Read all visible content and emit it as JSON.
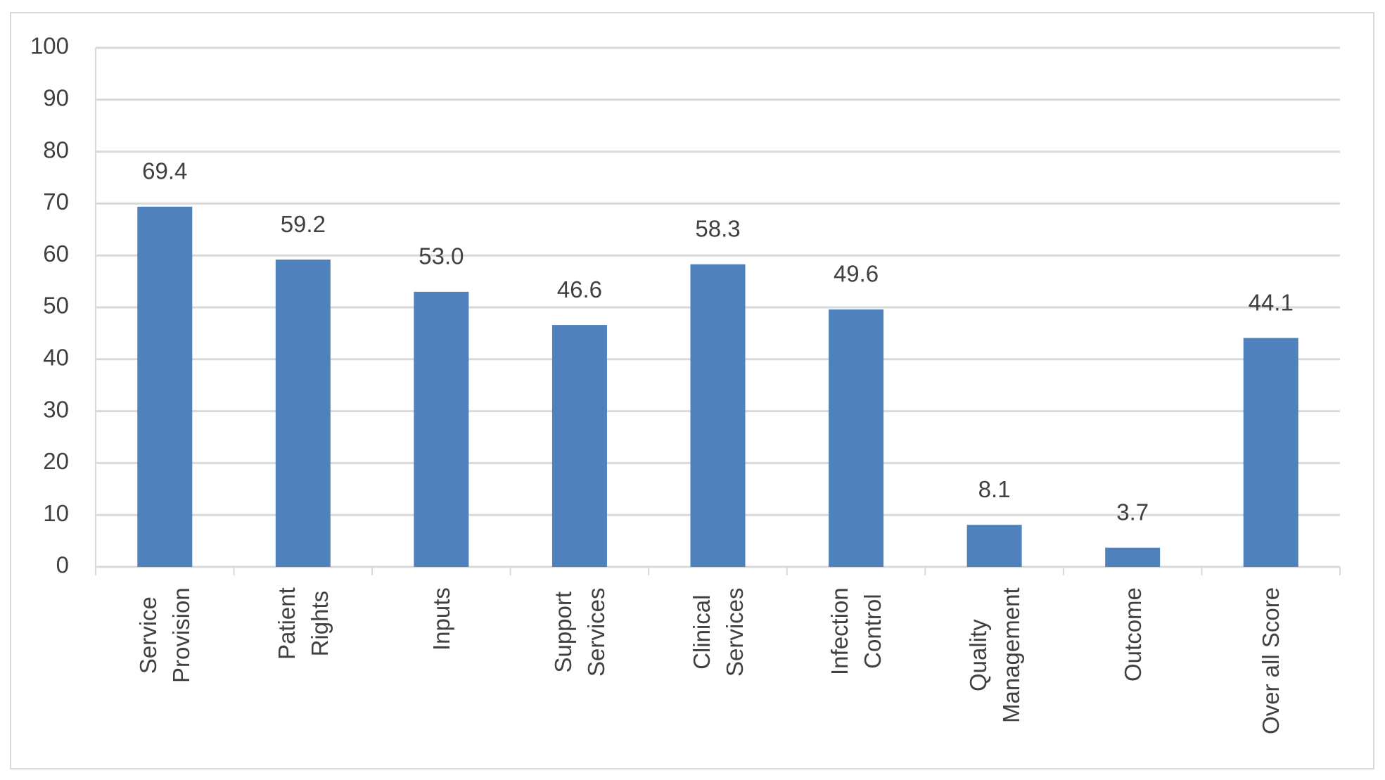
{
  "chart_data": {
    "type": "bar",
    "categories": [
      "Service\nProvision",
      "Patient\nRights",
      "Inputs",
      "Support\nServices",
      "Clinical\nServices",
      "Infection\nControl",
      "Quality\nManagement",
      "Outcome",
      "Over all Score"
    ],
    "values": [
      69.4,
      59.2,
      53.0,
      46.6,
      58.3,
      49.6,
      8.1,
      3.7,
      44.1
    ],
    "value_labels": [
      "69.4",
      "59.2",
      "53.0",
      "46.6",
      "58.3",
      "49.6",
      "8.1",
      "3.7",
      "44.1"
    ],
    "color": "#4f81bd",
    "ylim": [
      0,
      100
    ],
    "yticks": [
      0,
      10,
      20,
      30,
      40,
      50,
      60,
      70,
      80,
      90,
      100
    ],
    "grid": true
  }
}
